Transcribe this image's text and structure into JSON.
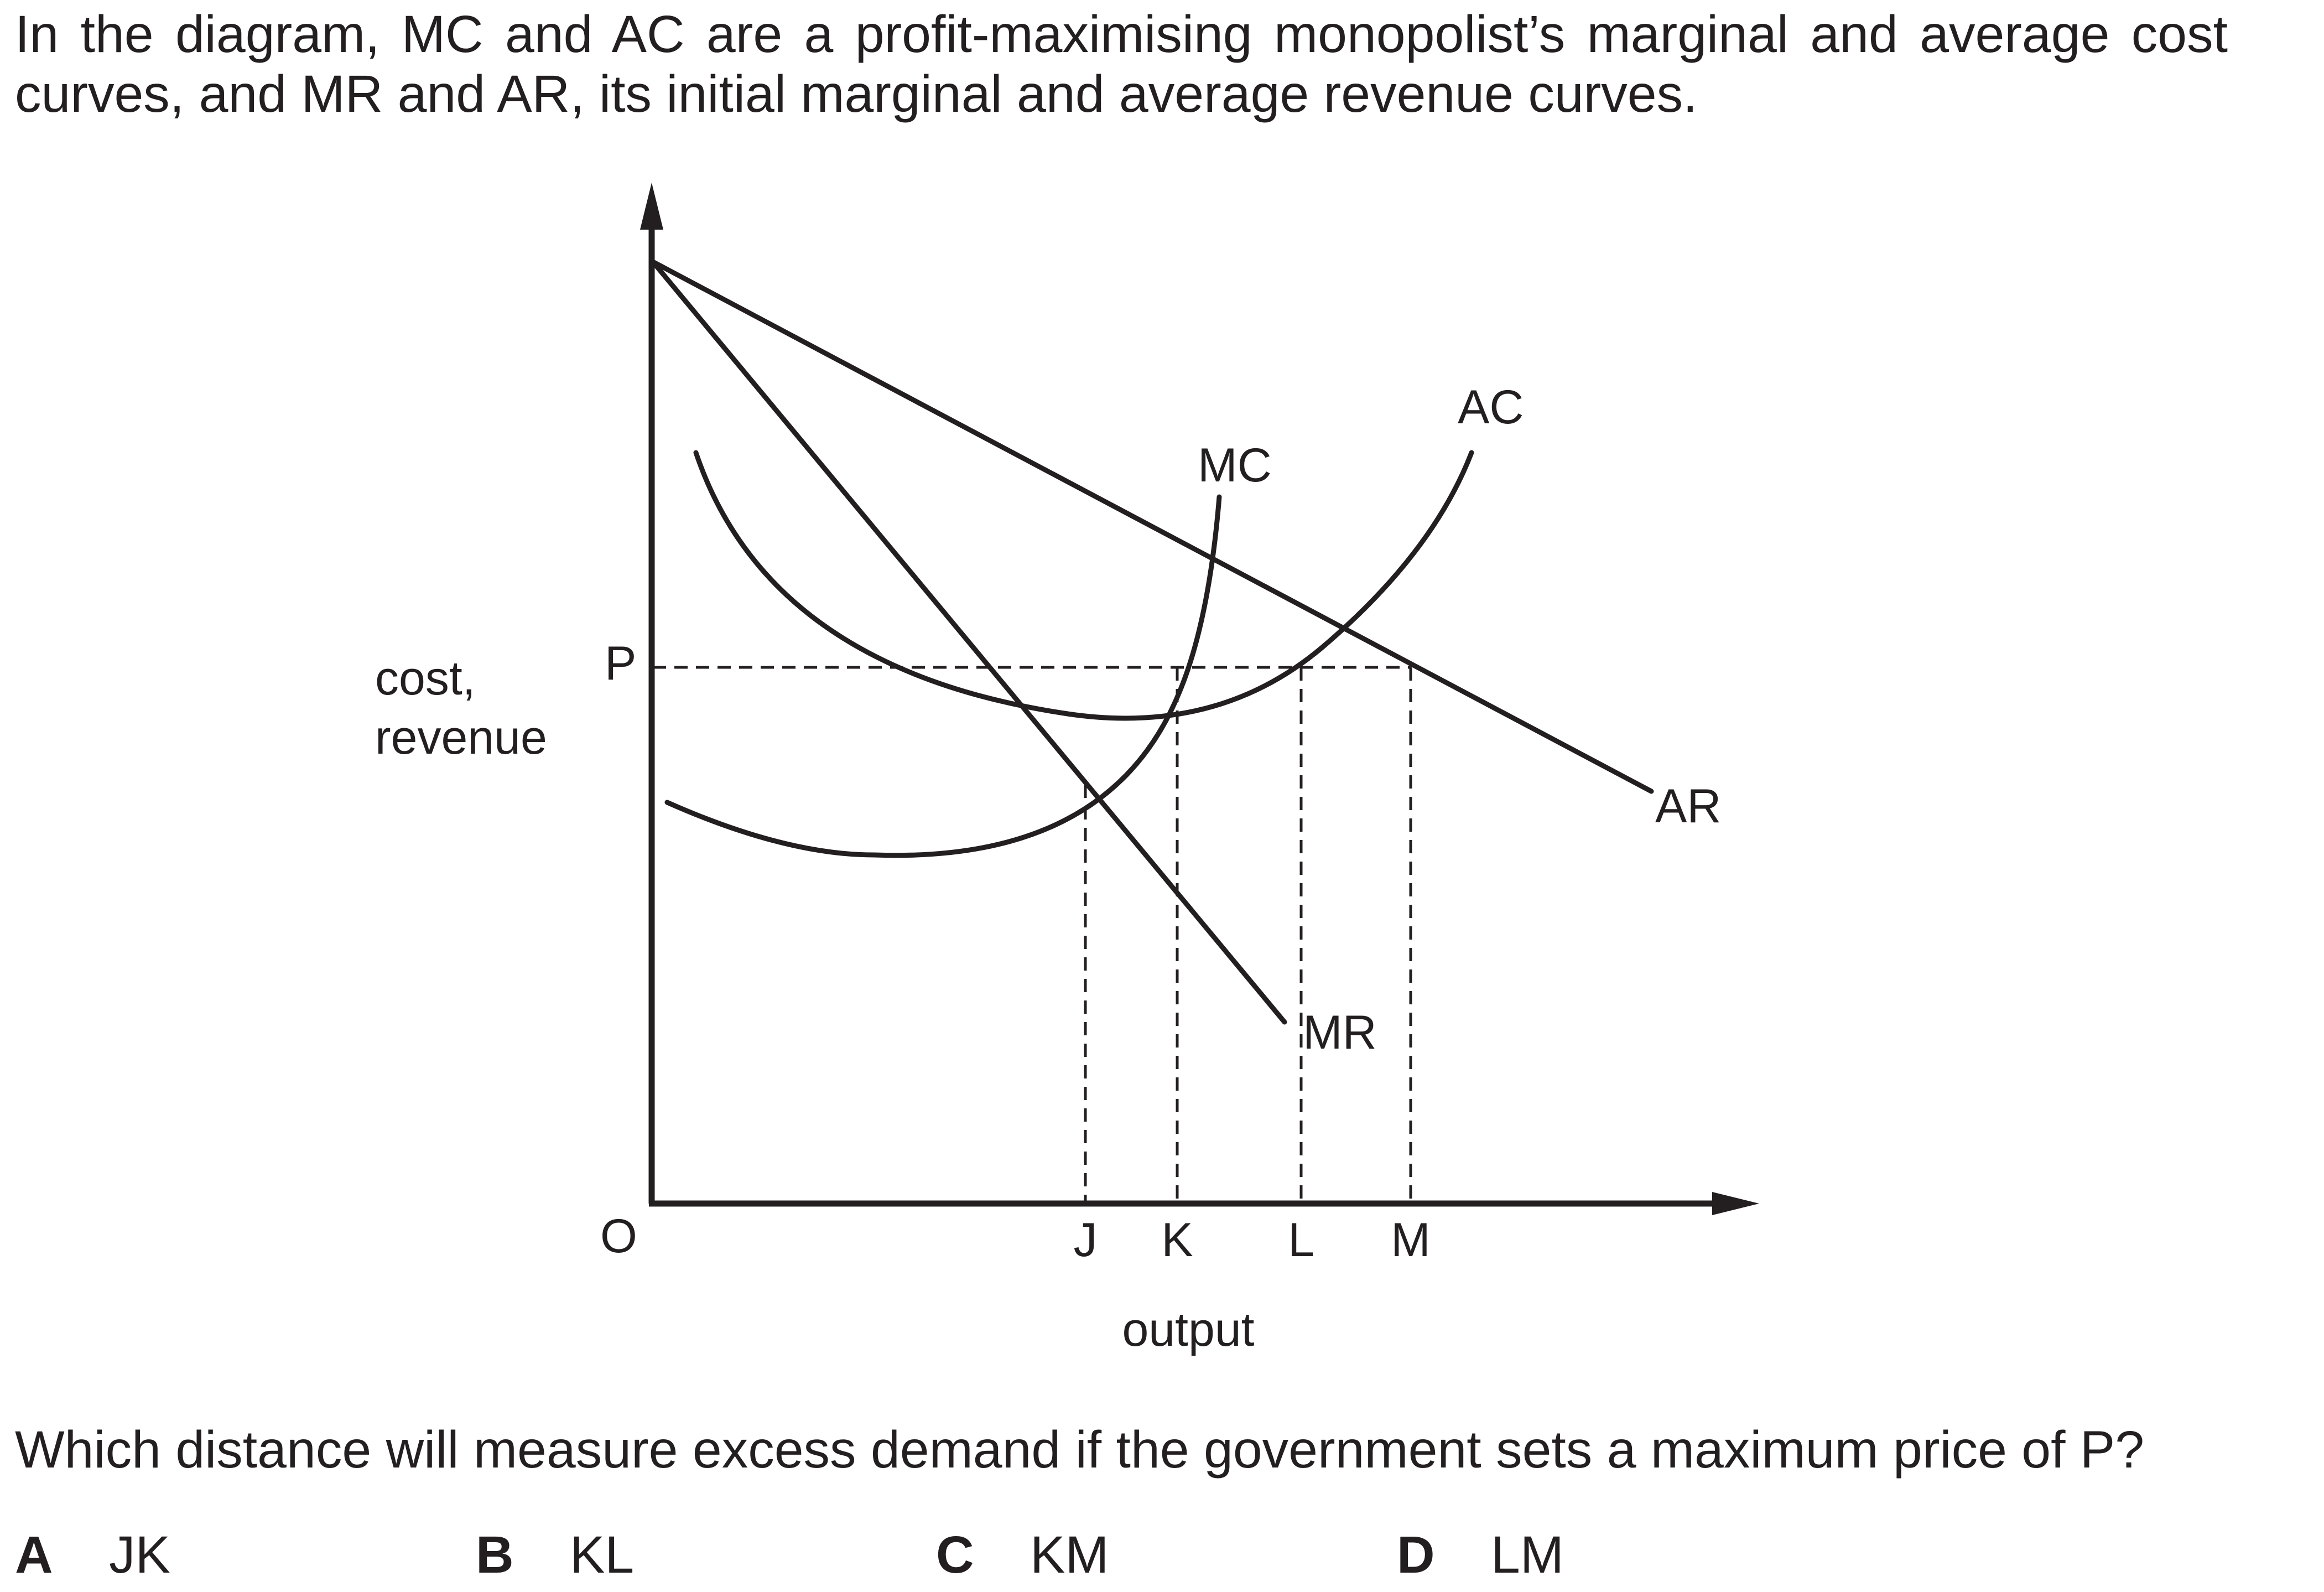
{
  "intro": "In the diagram, MC and AC are a profit-maximising monopolist’s marginal and average cost curves, and MR and AR, its initial marginal and average revenue curves.",
  "diagram": {
    "y_axis_label_line1": "cost,",
    "y_axis_label_line2": "revenue",
    "x_axis_label": "output",
    "origin_label": "O",
    "price_label": "P",
    "curves": {
      "mc": "MC",
      "ac": "AC",
      "ar": "AR",
      "mr": "MR"
    },
    "output_marks": {
      "j": "J",
      "k": "K",
      "l": "L",
      "m": "M"
    }
  },
  "question": "Which distance will measure excess demand if the government sets a maximum price of P?",
  "options": [
    {
      "key": "A",
      "text": "JK"
    },
    {
      "key": "B",
      "text": "KL"
    },
    {
      "key": "C",
      "text": "KM"
    },
    {
      "key": "D",
      "text": "LM"
    }
  ]
}
